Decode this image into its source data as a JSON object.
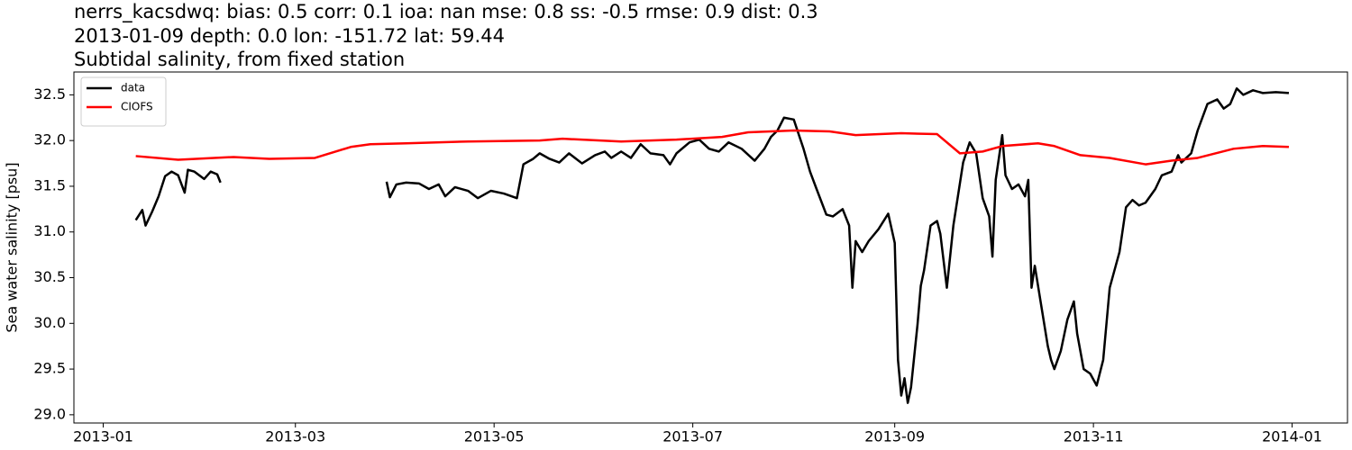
{
  "chart_data": {
    "type": "line",
    "title": [
      "nerrs_kacsdwq: bias: 0.5  corr: 0.1  ioa: nan  mse: 0.8  ss: -0.5  rmse: 0.9  dist: 0.3",
      "2013-01-09 depth: 0.0 lon: -151.72 lat: 59.44",
      "Subtidal salinity, from fixed station"
    ],
    "ylabel": "Sea water salinity [psu]",
    "xlim": [
      "2012-12-23",
      "2014-01-18"
    ],
    "xticks": [
      {
        "value": "2013-01-01",
        "label": "2013-01"
      },
      {
        "value": "2013-03-01",
        "label": "2013-03"
      },
      {
        "value": "2013-05-01",
        "label": "2013-05"
      },
      {
        "value": "2013-07-01",
        "label": "2013-07"
      },
      {
        "value": "2013-09-01",
        "label": "2013-09"
      },
      {
        "value": "2013-11-01",
        "label": "2013-11"
      },
      {
        "value": "2014-01-01",
        "label": "2014-01"
      }
    ],
    "ylim": [
      28.91,
      32.75
    ],
    "yticks": [
      {
        "value": 29,
        "label": "29.0"
      },
      29.5,
      {
        "value": 30,
        "label": "30.0"
      },
      30.5,
      {
        "value": 31,
        "label": "31.0"
      },
      31.5,
      {
        "value": 32,
        "label": "32.0"
      },
      32.5
    ],
    "grid": false,
    "legend": "upper left",
    "series": [
      {
        "name": "data",
        "color": "#000000",
        "x": [
          "2013-01-11",
          "2013-01-13",
          "2013-01-14",
          "2013-01-16",
          "2013-01-18",
          "2013-01-20",
          "2013-01-22",
          "2013-01-24",
          "2013-01-26",
          "2013-01-27",
          "2013-01-29",
          "2013-02-01",
          "2013-02-03",
          "2013-02-05",
          "2013-02-06",
          "2013-03-01",
          "2013-03-29",
          "2013-03-30",
          "2013-04-01",
          "2013-04-04",
          "2013-04-08",
          "2013-04-11",
          "2013-04-14",
          "2013-04-16",
          "2013-04-19",
          "2013-04-23",
          "2013-04-26",
          "2013-04-30",
          "2013-05-04",
          "2013-05-08",
          "2013-05-10",
          "2013-05-13",
          "2013-05-15",
          "2013-05-18",
          "2013-05-21",
          "2013-05-24",
          "2013-05-28",
          "2013-06-01",
          "2013-06-04",
          "2013-06-06",
          "2013-06-09",
          "2013-06-12",
          "2013-06-15",
          "2013-06-18",
          "2013-06-22",
          "2013-06-24",
          "2013-06-26",
          "2013-06-30",
          "2013-07-03",
          "2013-07-06",
          "2013-07-09",
          "2013-07-12",
          "2013-07-16",
          "2013-07-20",
          "2013-07-23",
          "2013-07-25",
          "2013-07-27",
          "2013-07-29",
          "2013-08-01",
          "2013-08-04",
          "2013-08-06",
          "2013-08-08",
          "2013-08-11",
          "2013-08-13",
          "2013-08-16",
          "2013-08-18",
          "2013-08-19",
          "2013-08-20",
          "2013-08-22",
          "2013-08-24",
          "2013-08-27",
          "2013-08-30",
          "2013-09-01",
          "2013-09-02",
          "2013-09-03",
          "2013-09-04",
          "2013-09-05",
          "2013-09-06",
          "2013-09-08",
          "2013-09-09",
          "2013-09-10",
          "2013-09-12",
          "2013-09-14",
          "2013-09-15",
          "2013-09-17",
          "2013-09-19",
          "2013-09-22",
          "2013-09-24",
          "2013-09-26",
          "2013-09-28",
          "2013-09-30",
          "2013-10-01",
          "2013-10-02",
          "2013-10-04",
          "2013-10-05",
          "2013-10-07",
          "2013-10-09",
          "2013-10-11",
          "2013-10-12",
          "2013-10-13",
          "2013-10-14",
          "2013-10-16",
          "2013-10-18",
          "2013-10-19",
          "2013-10-20",
          "2013-10-22",
          "2013-10-24",
          "2013-10-26",
          "2013-10-27",
          "2013-10-29",
          "2013-10-31",
          "2013-11-02",
          "2013-11-04",
          "2013-11-06",
          "2013-11-09",
          "2013-11-11",
          "2013-11-13",
          "2013-11-15",
          "2013-11-17",
          "2013-11-20",
          "2013-11-22",
          "2013-11-25",
          "2013-11-27",
          "2013-11-28",
          "2013-12-01",
          "2013-12-03",
          "2013-12-06",
          "2013-12-09",
          "2013-12-11",
          "2013-12-13",
          "2013-12-15",
          "2013-12-17",
          "2013-12-20",
          "2013-12-23",
          "2013-12-27",
          "2013-12-31"
        ],
        "values": [
          31.13,
          31.24,
          31.07,
          31.22,
          31.39,
          31.61,
          31.66,
          31.62,
          31.43,
          31.68,
          31.66,
          31.58,
          31.66,
          31.63,
          31.54,
          null,
          31.55,
          31.38,
          31.52,
          31.54,
          31.53,
          31.47,
          31.52,
          31.39,
          31.49,
          31.45,
          31.37,
          31.45,
          31.42,
          31.37,
          31.74,
          31.8,
          31.86,
          31.8,
          31.76,
          31.86,
          31.75,
          31.84,
          31.88,
          31.81,
          31.88,
          31.81,
          31.96,
          31.86,
          31.84,
          31.74,
          31.86,
          31.98,
          32.01,
          31.91,
          31.88,
          31.98,
          31.91,
          31.78,
          31.91,
          32.04,
          32.11,
          32.25,
          32.23,
          31.91,
          31.66,
          31.47,
          31.19,
          31.17,
          31.25,
          31.07,
          30.39,
          30.9,
          30.78,
          30.9,
          31.03,
          31.2,
          30.88,
          29.6,
          29.21,
          29.4,
          29.13,
          29.3,
          29.99,
          30.41,
          30.58,
          31.07,
          31.12,
          30.98,
          30.39,
          31.07,
          31.76,
          31.98,
          31.86,
          31.37,
          31.17,
          30.73,
          31.57,
          32.06,
          31.62,
          31.47,
          31.52,
          31.39,
          31.57,
          30.39,
          30.63,
          30.19,
          29.75,
          29.6,
          29.5,
          29.7,
          30.04,
          30.24,
          29.89,
          29.5,
          29.45,
          29.32,
          29.6,
          30.39,
          30.78,
          31.27,
          31.35,
          31.29,
          31.32,
          31.47,
          31.62,
          31.66,
          31.84,
          31.76,
          31.86,
          32.11,
          32.4,
          32.45,
          32.35,
          32.4,
          32.57,
          32.5,
          32.55,
          32.52,
          32.53,
          32.52
        ]
      },
      {
        "name": "CIOFS",
        "color": "#ff0000",
        "x": [
          "2013-01-11",
          "2013-01-24",
          "2013-02-10",
          "2013-02-21",
          "2013-03-07",
          "2013-03-18",
          "2013-03-24",
          "2013-04-04",
          "2013-04-23",
          "2013-05-15",
          "2013-05-22",
          "2013-06-09",
          "2013-06-26",
          "2013-07-10",
          "2013-07-18",
          "2013-08-01",
          "2013-08-12",
          "2013-08-20",
          "2013-09-03",
          "2013-09-14",
          "2013-09-21",
          "2013-09-28",
          "2013-10-04",
          "2013-10-15",
          "2013-10-20",
          "2013-10-28",
          "2013-11-06",
          "2013-11-17",
          "2013-11-25",
          "2013-12-03",
          "2013-12-14",
          "2013-12-23",
          "2013-12-31"
        ],
        "values": [
          31.83,
          31.79,
          31.82,
          31.8,
          31.81,
          31.93,
          31.96,
          31.97,
          31.99,
          32.0,
          32.02,
          31.99,
          32.01,
          32.04,
          32.09,
          32.11,
          32.1,
          32.06,
          32.08,
          32.07,
          31.86,
          31.88,
          31.94,
          31.97,
          31.94,
          31.84,
          31.81,
          31.74,
          31.78,
          31.81,
          31.91,
          31.94,
          31.93
        ]
      }
    ]
  }
}
